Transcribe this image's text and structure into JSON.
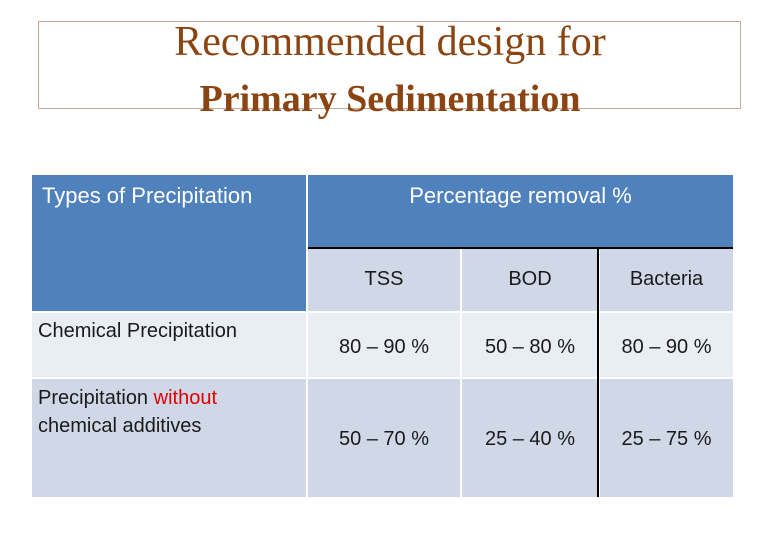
{
  "title": {
    "line1": "Recommended design for",
    "line2": "Primary Sedimentation"
  },
  "table": {
    "header": {
      "types_label": "Types of Precipitation",
      "percentage_label": "Percentage removal %"
    },
    "columns": [
      "TSS",
      "BOD",
      "Bacteria"
    ],
    "rows": [
      {
        "type": "Chemical Precipitation",
        "values": [
          "80 – 90 %",
          "50 – 80 %",
          "80 – 90 %"
        ]
      },
      {
        "type_part1": "Precipitation ",
        "type_highlight": "without",
        "type_part2": "chemical additives",
        "values": [
          "50 – 70 %",
          "25 – 40 %",
          "25 – 75 %"
        ]
      }
    ]
  },
  "colors": {
    "title": "#8b4513",
    "header_bg": "#4f81bd",
    "row_light": "#e9edf4",
    "row_dark": "#d0d8e8",
    "highlight": "#e00000"
  }
}
